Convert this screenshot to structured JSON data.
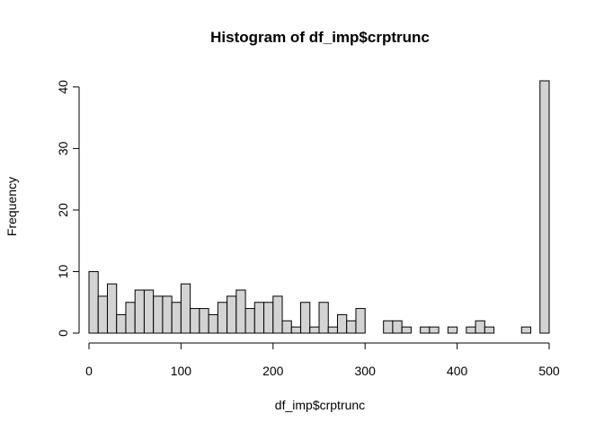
{
  "chart_data": {
    "type": "bar",
    "title": "Histogram of df_imp$crptrunc",
    "xlabel": "df_imp$crptrunc",
    "ylabel": "Frequency",
    "bin_width": 10,
    "bins_start": [
      0,
      10,
      20,
      30,
      40,
      50,
      60,
      70,
      80,
      90,
      100,
      110,
      120,
      130,
      140,
      150,
      160,
      170,
      180,
      190,
      200,
      210,
      220,
      230,
      240,
      250,
      260,
      270,
      280,
      290,
      300,
      310,
      320,
      330,
      340,
      350,
      360,
      370,
      380,
      390,
      400,
      410,
      420,
      430,
      440,
      450,
      460,
      470,
      480,
      490
    ],
    "values": [
      10,
      6,
      8,
      3,
      5,
      7,
      7,
      6,
      6,
      5,
      8,
      4,
      4,
      3,
      5,
      6,
      7,
      4,
      5,
      5,
      6,
      2,
      1,
      5,
      1,
      5,
      1,
      3,
      2,
      4,
      0,
      0,
      2,
      2,
      1,
      0,
      1,
      1,
      0,
      1,
      0,
      1,
      2,
      1,
      0,
      0,
      0,
      1,
      0,
      41
    ],
    "xlim": [
      0,
      500
    ],
    "ylim": [
      0,
      41
    ],
    "xticks": [
      0,
      100,
      200,
      300,
      400,
      500
    ],
    "yticks": [
      0,
      10,
      20,
      30,
      40
    ],
    "bar_fill": "#d3d3d3",
    "bar_stroke": "#000000",
    "grid": false
  }
}
